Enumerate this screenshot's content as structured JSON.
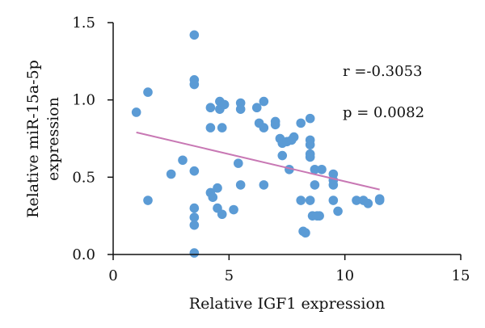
{
  "chart_data": {
    "type": "scatter",
    "xlabel": "Relative IGF1 expression",
    "ylabel_line1": "Relative miR-15a-5p",
    "ylabel_line2": "expression",
    "xlim": [
      0,
      15
    ],
    "ylim": [
      0,
      1.5
    ],
    "xticks": [
      "0",
      "5",
      "10",
      "15"
    ],
    "yticks": [
      "0.0",
      "0.5",
      "1.0",
      "1.5"
    ],
    "grid": false,
    "legend": "none",
    "annotations": {
      "r": "r =-0.3053",
      "p": "p = 0.0082"
    },
    "colors": {
      "points": "#5b9bd5",
      "trendline": "#c878b4",
      "axis": "#111111"
    },
    "trendline": {
      "x": [
        1.0,
        11.5
      ],
      "y": [
        0.79,
        0.42
      ]
    },
    "points": [
      [
        1.0,
        0.92
      ],
      [
        1.5,
        1.05
      ],
      [
        1.5,
        0.35
      ],
      [
        2.5,
        0.52
      ],
      [
        3.0,
        0.61
      ],
      [
        3.5,
        1.42
      ],
      [
        3.5,
        1.13
      ],
      [
        3.5,
        1.1
      ],
      [
        3.5,
        0.54
      ],
      [
        3.5,
        0.3
      ],
      [
        3.5,
        0.24
      ],
      [
        3.5,
        0.19
      ],
      [
        3.5,
        0.01
      ],
      [
        4.2,
        0.95
      ],
      [
        4.2,
        0.82
      ],
      [
        4.2,
        0.4
      ],
      [
        4.3,
        0.37
      ],
      [
        4.5,
        0.43
      ],
      [
        4.5,
        0.3
      ],
      [
        4.6,
        0.99
      ],
      [
        4.6,
        0.94
      ],
      [
        4.7,
        0.82
      ],
      [
        4.7,
        0.26
      ],
      [
        4.8,
        0.97
      ],
      [
        5.2,
        0.29
      ],
      [
        5.4,
        0.59
      ],
      [
        5.5,
        0.98
      ],
      [
        5.5,
        0.94
      ],
      [
        5.5,
        0.45
      ],
      [
        6.2,
        0.95
      ],
      [
        6.3,
        0.85
      ],
      [
        6.5,
        0.99
      ],
      [
        6.5,
        0.82
      ],
      [
        6.5,
        0.45
      ],
      [
        7.0,
        0.86
      ],
      [
        7.0,
        0.84
      ],
      [
        7.2,
        0.75
      ],
      [
        7.3,
        0.72
      ],
      [
        7.3,
        0.64
      ],
      [
        7.5,
        0.73
      ],
      [
        7.6,
        0.55
      ],
      [
        7.7,
        0.74
      ],
      [
        7.8,
        0.76
      ],
      [
        8.1,
        0.85
      ],
      [
        8.1,
        0.35
      ],
      [
        8.2,
        0.15
      ],
      [
        8.3,
        0.14
      ],
      [
        8.5,
        0.88
      ],
      [
        8.5,
        0.74
      ],
      [
        8.5,
        0.71
      ],
      [
        8.5,
        0.65
      ],
      [
        8.5,
        0.63
      ],
      [
        8.5,
        0.35
      ],
      [
        8.6,
        0.25
      ],
      [
        8.7,
        0.55
      ],
      [
        8.7,
        0.45
      ],
      [
        8.8,
        0.25
      ],
      [
        8.9,
        0.25
      ],
      [
        9.0,
        0.55
      ],
      [
        9.5,
        0.52
      ],
      [
        9.5,
        0.48
      ],
      [
        9.5,
        0.45
      ],
      [
        9.5,
        0.35
      ],
      [
        9.7,
        0.28
      ],
      [
        10.5,
        0.35
      ],
      [
        10.8,
        0.35
      ],
      [
        11.0,
        0.33
      ],
      [
        11.5,
        0.35
      ],
      [
        11.5,
        0.36
      ]
    ]
  }
}
